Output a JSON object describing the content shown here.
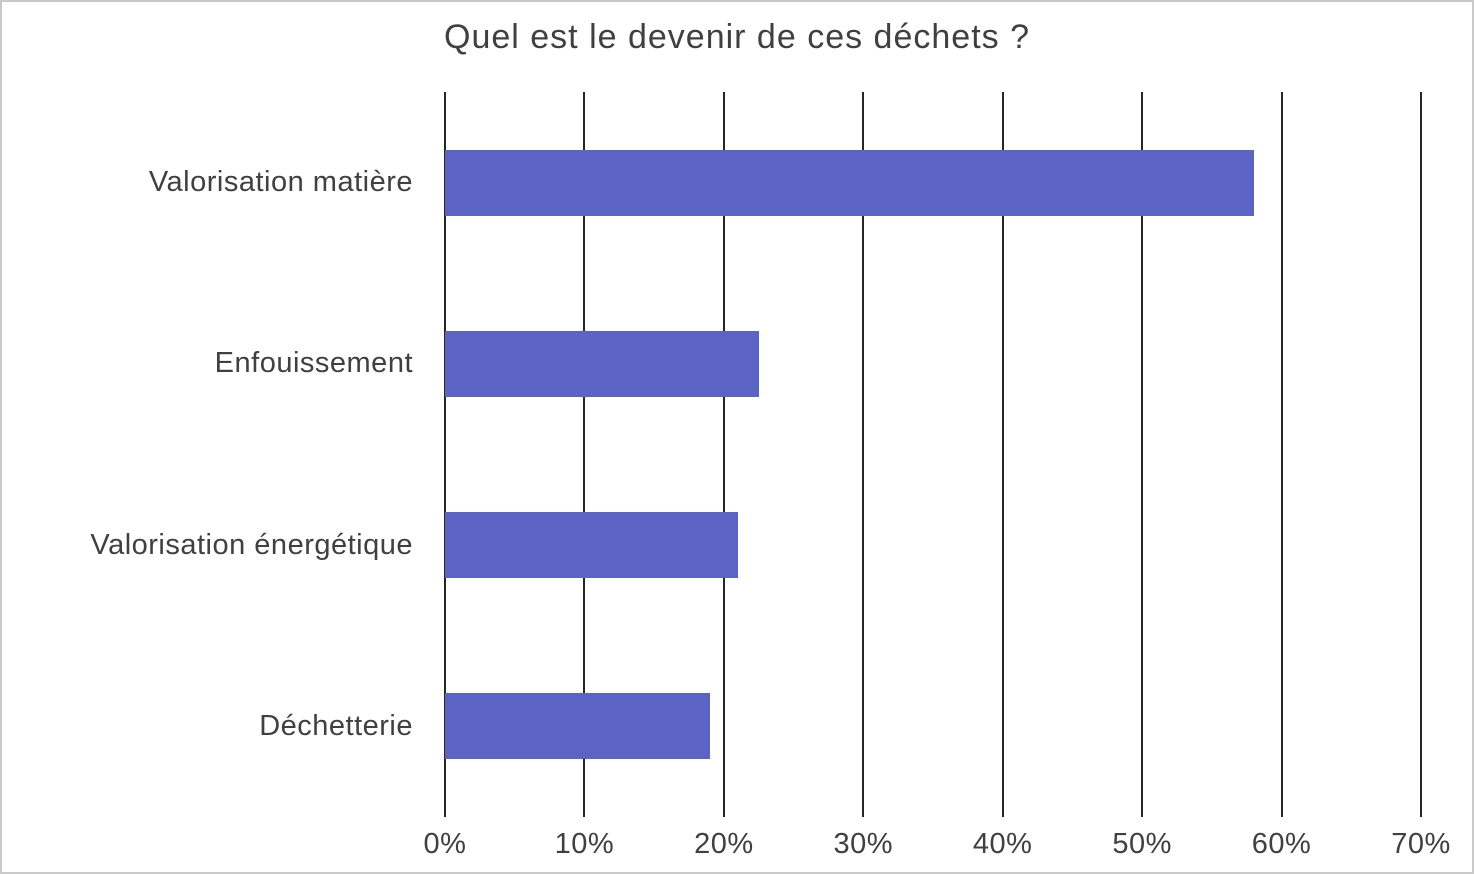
{
  "chart_data": {
    "type": "bar",
    "orientation": "horizontal",
    "title": "Quel est le devenir de ces déchets ?",
    "categories": [
      "Valorisation matière",
      "Enfouissement",
      "Valorisation énergétique",
      "Déchetterie"
    ],
    "values": [
      58,
      22.5,
      21,
      19
    ],
    "unit": "%",
    "xlim": [
      0,
      70
    ],
    "x_tick_values": [
      0,
      10,
      20,
      30,
      40,
      50,
      60,
      70
    ],
    "x_tick_labels": [
      "0%",
      "10%",
      "20%",
      "30%",
      "40%",
      "50%",
      "60%",
      "70%"
    ],
    "grid": true,
    "legend": "none",
    "bar_color": "#5b63c5",
    "gridline_color": "#262626",
    "text_color": "#404040"
  }
}
